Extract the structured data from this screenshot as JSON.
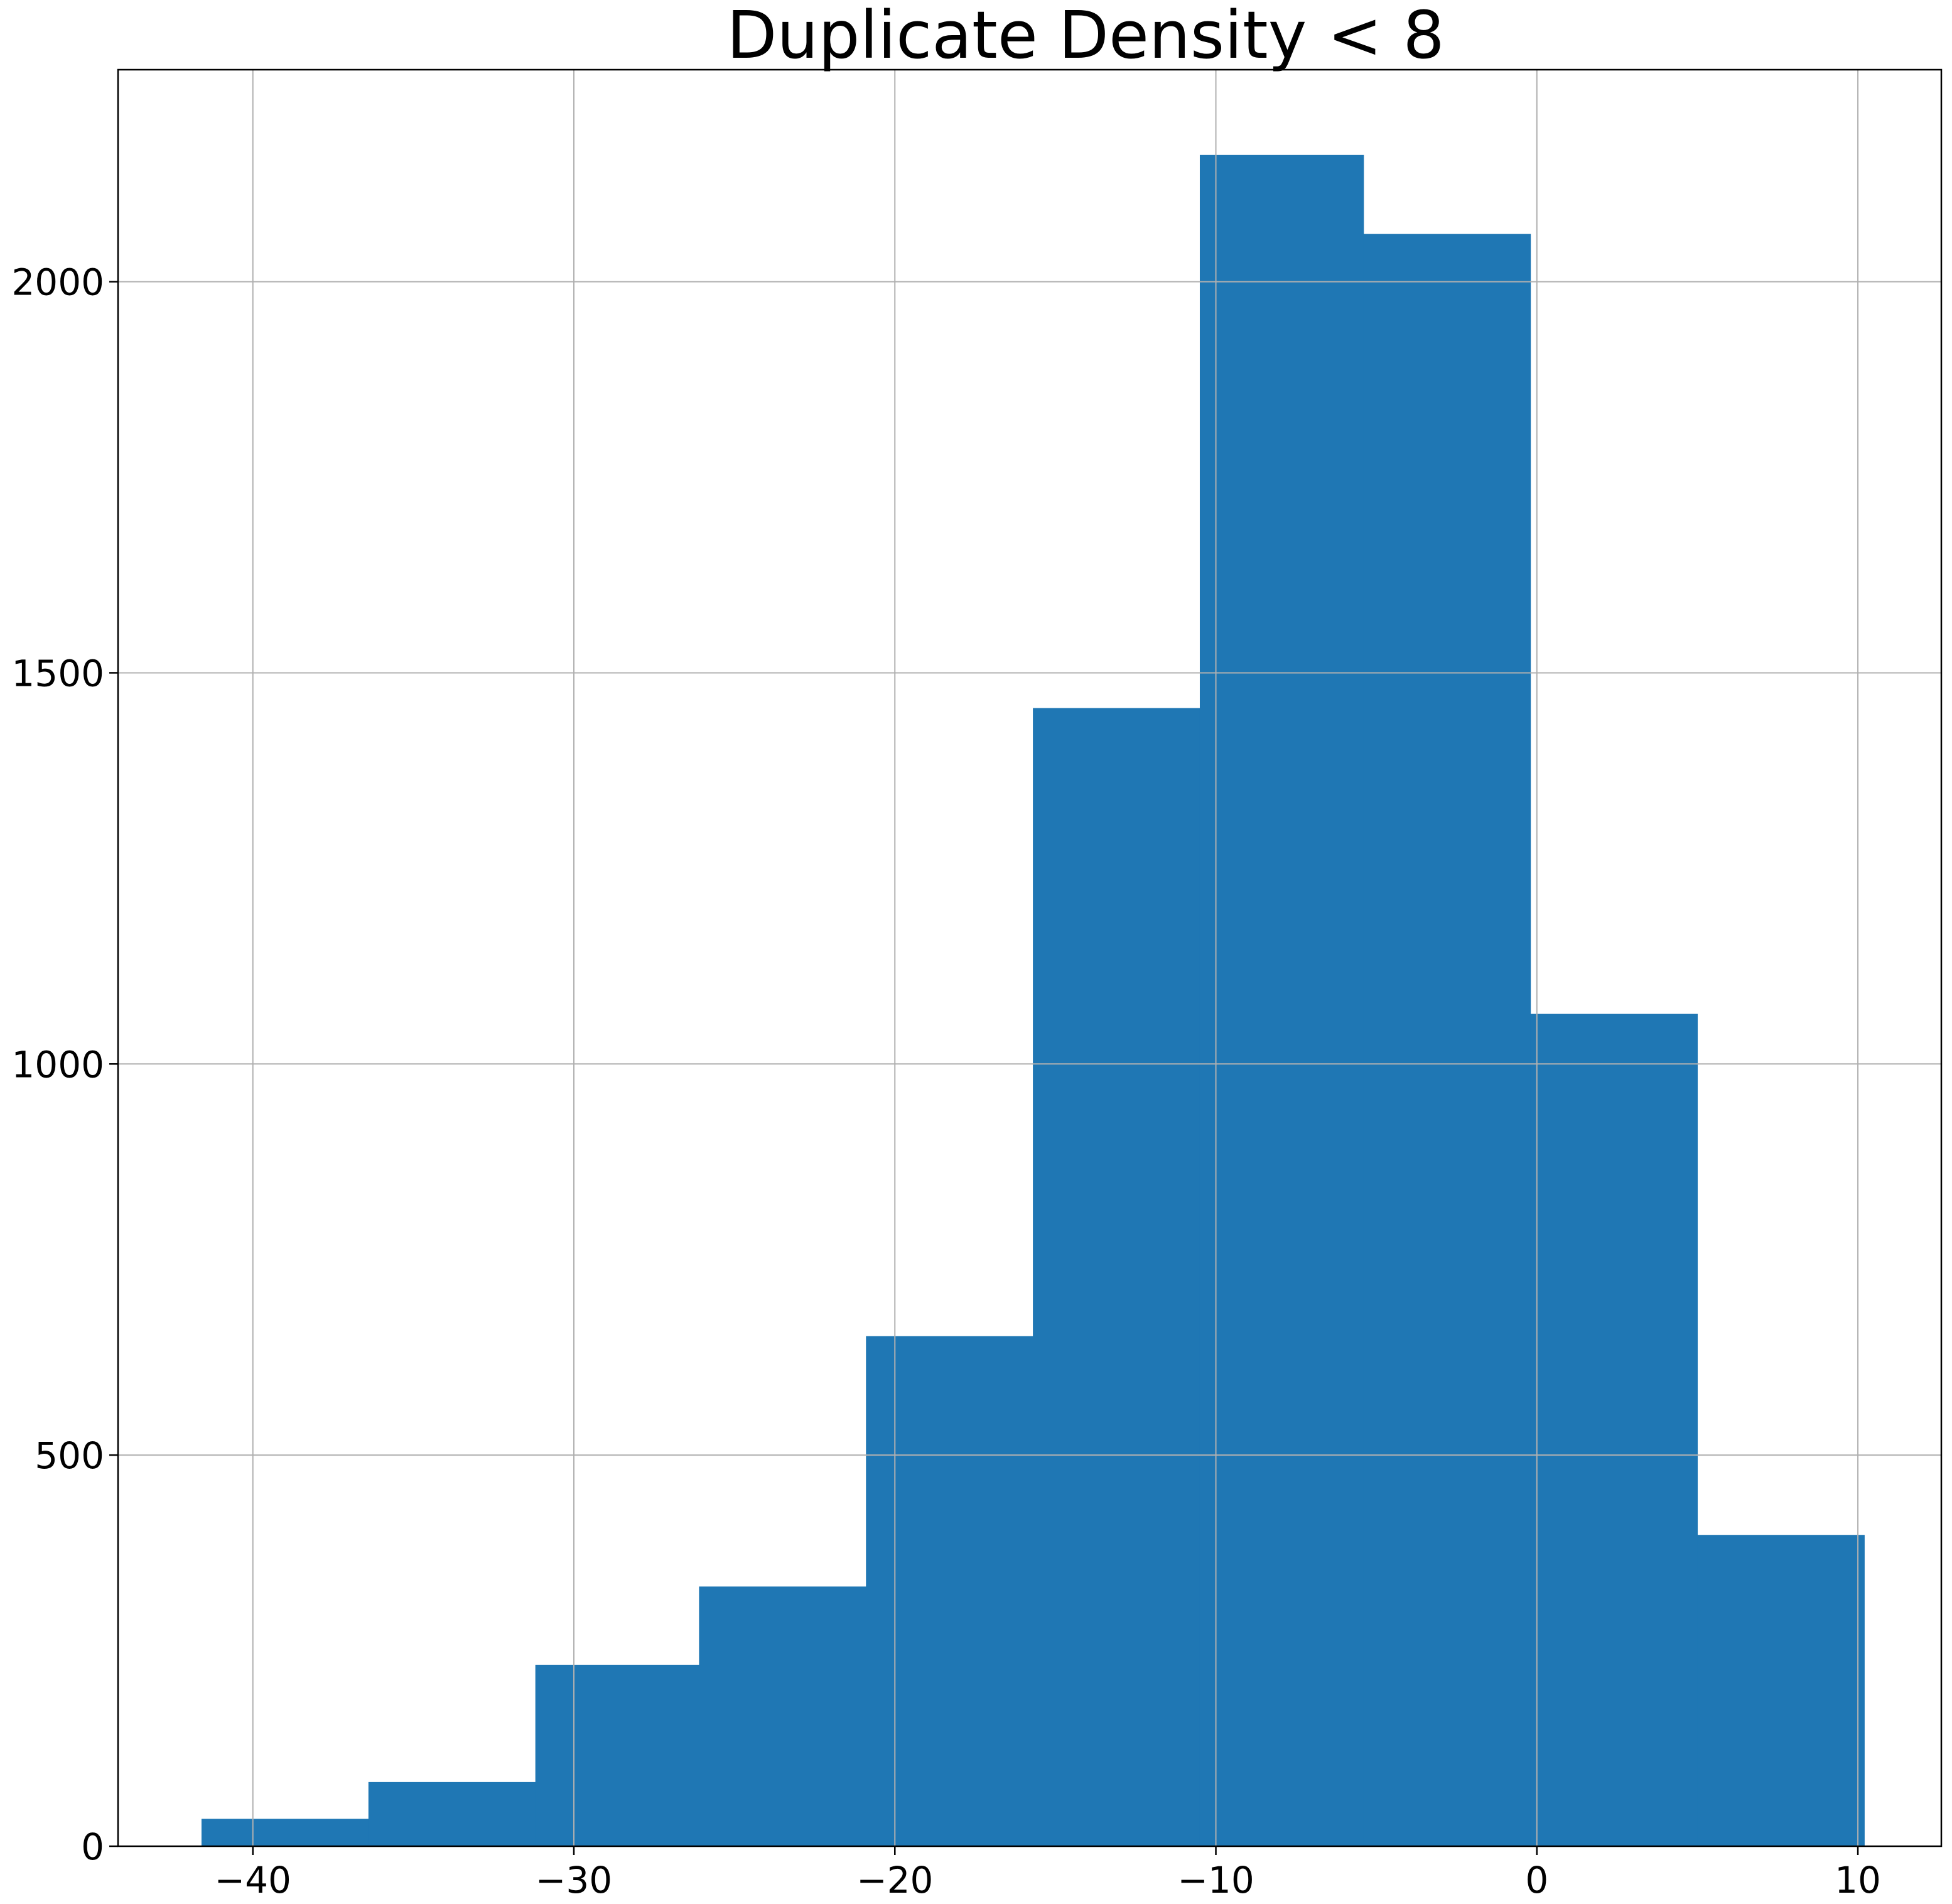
{
  "chart_data": {
    "type": "bar",
    "title": "Duplicate Density < 8",
    "xlabel": "",
    "ylabel": "",
    "bin_edges": [
      -41.6,
      -36.4,
      -31.2,
      -26.1,
      -20.9,
      -15.7,
      -10.5,
      -5.4,
      -0.2,
      5.0,
      10.2
    ],
    "values": [
      35,
      82,
      232,
      332,
      652,
      1455,
      2162,
      2061,
      1064,
      398
    ],
    "xlim": [
      -44.2,
      12.6
    ],
    "ylim": [
      0,
      2271
    ],
    "x_ticks": [
      -40,
      -30,
      -20,
      -10,
      0,
      10
    ],
    "x_tick_labels": [
      "−40",
      "−30",
      "−20",
      "−10",
      "0",
      "10"
    ],
    "y_ticks": [
      0,
      500,
      1000,
      1500,
      2000
    ],
    "y_tick_labels": [
      "0",
      "500",
      "1000",
      "1500",
      "2000"
    ],
    "grid": true,
    "bar_color": "#1f77b4"
  }
}
